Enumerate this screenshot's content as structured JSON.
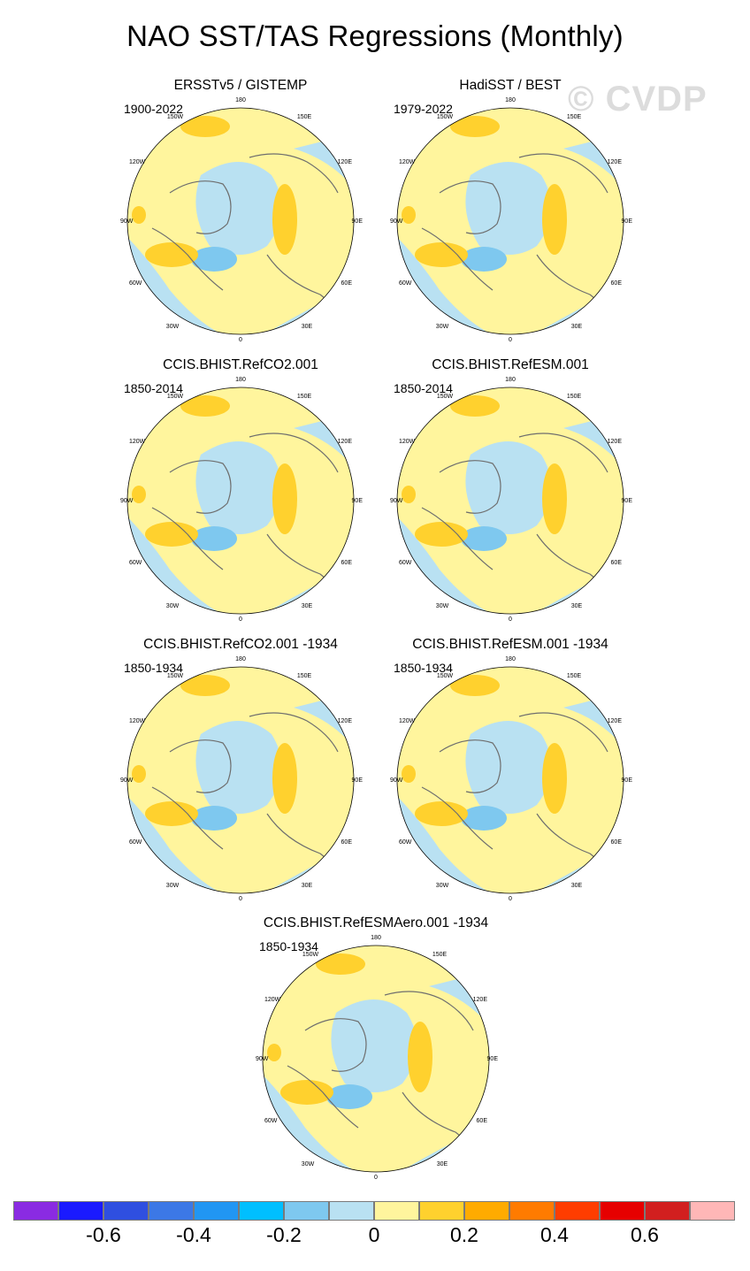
{
  "figure": {
    "title": "NAO SST/TAS Regressions (Monthly)",
    "watermark": "© CVDP"
  },
  "panels": [
    {
      "title": "ERSSTv5 / GISTEMP",
      "years": "1900-2022"
    },
    {
      "title": "HadiSST / BEST",
      "years": "1979-2022"
    },
    {
      "title": "CCIS.BHIST.RefCO2.001",
      "years": "1850-2014"
    },
    {
      "title": "CCIS.BHIST.RefESM.001",
      "years": "1850-2014"
    },
    {
      "title": "CCIS.BHIST.RefCO2.001 -1934",
      "years": "1850-1934"
    },
    {
      "title": "CCIS.BHIST.RefESM.001 -1934",
      "years": "1850-1934"
    },
    {
      "title": "CCIS.BHIST.RefESMAero.001 -1934",
      "years": "1850-1934"
    }
  ],
  "map_labels": {
    "top": "180",
    "bottom": "0",
    "left": "90W",
    "right": "90E",
    "upper_left_1": "150W",
    "upper_left_2": "120W",
    "upper_right_1": "150E",
    "upper_right_2": "120E",
    "lower_left_1": "60W",
    "lower_left_2": "30W",
    "lower_right_1": "60E",
    "lower_right_2": "30E"
  },
  "colorbar": {
    "colors": [
      "#8a2be2",
      "#1a1aff",
      "#2f4fe0",
      "#3c78e6",
      "#2196f3",
      "#00bfff",
      "#7ec8ef",
      "#b9e1f2",
      "#fff59d",
      "#ffd12e",
      "#ffab00",
      "#ff7b00",
      "#ff3d00",
      "#e60000",
      "#d21f1f",
      "#ffb7b7"
    ],
    "labels": [
      "-0.6",
      "-0.4",
      "-0.2",
      "0",
      "0.2",
      "0.4",
      "0.6"
    ]
  }
}
